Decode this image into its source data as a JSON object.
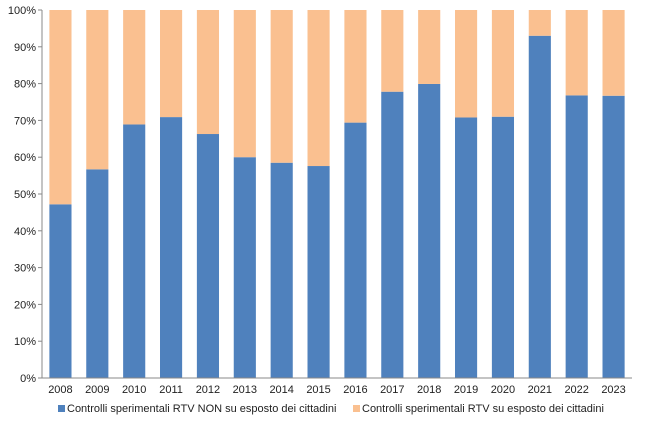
{
  "chart_data": {
    "type": "bar",
    "stacked": true,
    "percent": true,
    "categories": [
      "2008",
      "2009",
      "2010",
      "2011",
      "2012",
      "2013",
      "2014",
      "2015",
      "2016",
      "2017",
      "2018",
      "2019",
      "2020",
      "2021",
      "2022",
      "2023"
    ],
    "series": [
      {
        "name": "Controlli sperimentali RTV NON su esposto dei cittadini",
        "color": "#4F81BD",
        "values": [
          47.2,
          56.7,
          68.9,
          70.9,
          66.3,
          60.0,
          58.5,
          57.6,
          69.4,
          77.8,
          79.9,
          70.8,
          71.0,
          93.0,
          76.8,
          76.7
        ]
      },
      {
        "name": "Controlli sperimentali RTV su esposto dei cittadini",
        "color": "#FAC090",
        "values": [
          52.8,
          43.3,
          31.1,
          29.1,
          33.7,
          40.0,
          41.5,
          42.4,
          30.6,
          22.2,
          20.1,
          29.2,
          29.0,
          7.0,
          23.2,
          23.3
        ]
      }
    ],
    "y_ticks": [
      "0%",
      "10%",
      "20%",
      "30%",
      "40%",
      "50%",
      "60%",
      "70%",
      "80%",
      "90%",
      "100%"
    ],
    "ylim": [
      0,
      100
    ],
    "grid": false,
    "legend_position": "bottom"
  }
}
